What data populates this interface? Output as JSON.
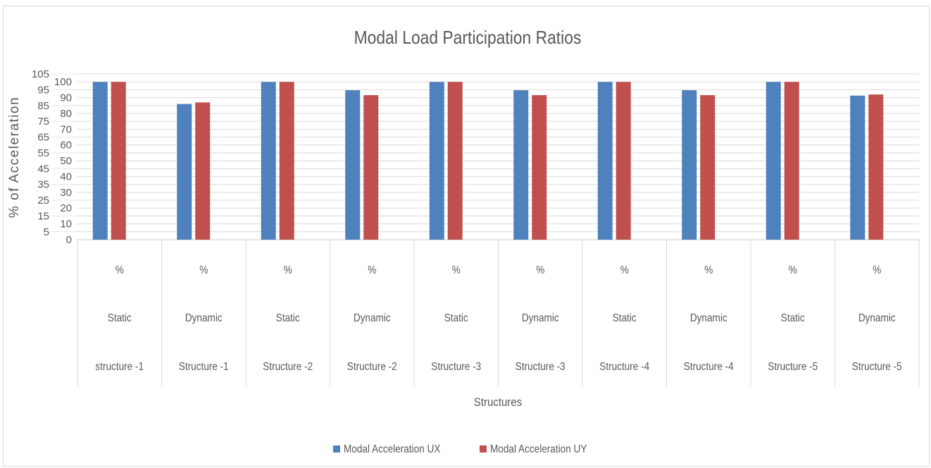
{
  "chart_data": {
    "type": "bar",
    "title": "Modal Load Participation Ratios",
    "xlabel": "Structures",
    "ylabel": "% of Acceleration",
    "ylim": [
      0,
      105
    ],
    "yticks": [
      0,
      5,
      10,
      15,
      20,
      25,
      30,
      35,
      40,
      45,
      50,
      55,
      60,
      65,
      70,
      75,
      80,
      85,
      90,
      95,
      100,
      105
    ],
    "grid": true,
    "legend_position": "bottom",
    "categories": [
      [
        "%",
        "Static",
        "structure -1"
      ],
      [
        "%",
        "Dynamic",
        "Structure -1"
      ],
      [
        "%",
        "Static",
        "Structure -2"
      ],
      [
        "%",
        "Dynamic",
        "Structure -2"
      ],
      [
        "%",
        "Static",
        "Structure -3"
      ],
      [
        "%",
        "Dynamic",
        "Structure -3"
      ],
      [
        "%",
        "Static",
        "Structure -4"
      ],
      [
        "%",
        "Dynamic",
        "Structure -4"
      ],
      [
        "%",
        "Static",
        "Structure -5"
      ],
      [
        "%",
        "Dynamic",
        "Structure -5"
      ]
    ],
    "series": [
      {
        "name": "Modal Acceleration UX",
        "color": "#4f81bd",
        "values": [
          100,
          86,
          100,
          94.7,
          100,
          94.7,
          100,
          94.7,
          100,
          91.3
        ]
      },
      {
        "name": "Modal Acceleration UY",
        "color": "#c0504d",
        "values": [
          100,
          87,
          100,
          91.6,
          100,
          91.6,
          100,
          91.6,
          100,
          92
        ]
      }
    ]
  }
}
